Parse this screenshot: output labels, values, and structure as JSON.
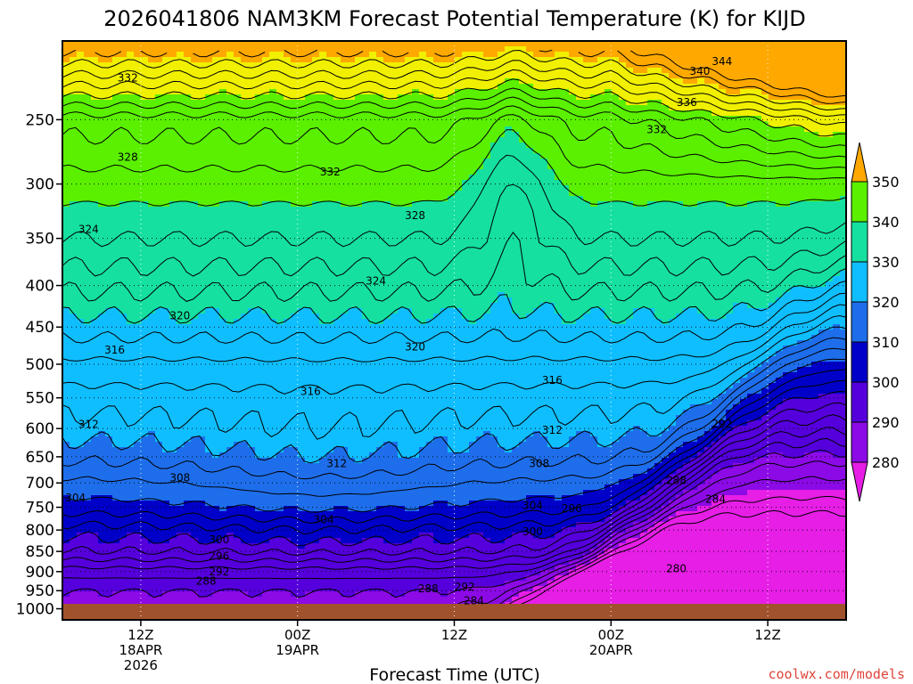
{
  "chart_data": {
    "type": "heatmap",
    "title": "2026041806 NAM3KM Forecast Potential Temperature (K) for KIJD",
    "xlabel": "Forecast Time (UTC)",
    "ylabel": "",
    "credit": "coolwx.com/models",
    "y_axis": {
      "units": "hPa",
      "scale": "log-pressure",
      "range": [
        1000,
        200
      ],
      "ticks": [
        250,
        300,
        350,
        400,
        450,
        500,
        550,
        600,
        650,
        700,
        750,
        800,
        850,
        900,
        950,
        1000
      ]
    },
    "x_axis": {
      "units": "hours from 2026-04-18 06Z",
      "range": [
        0,
        60
      ],
      "ticks": [
        {
          "hour": 6,
          "line1": "12Z",
          "line2": "18APR",
          "line3": "2026"
        },
        {
          "hour": 18,
          "line1": "00Z",
          "line2": "19APR",
          "line3": ""
        },
        {
          "hour": 30,
          "line1": "12Z",
          "line2": "",
          "line3": ""
        },
        {
          "hour": 42,
          "line1": "00Z",
          "line2": "20APR",
          "line3": ""
        },
        {
          "hour": 54,
          "line1": "12Z",
          "line2": "",
          "line3": ""
        }
      ]
    },
    "colorbar": {
      "levels": [
        280,
        290,
        300,
        310,
        320,
        330,
        340,
        350
      ],
      "colors": [
        "#e61ee6",
        "#8c0ae6",
        "#5500dc",
        "#0000c8",
        "#1e6eeb",
        "#0fbeff",
        "#15e0a0",
        "#5af000",
        "#f0f000",
        "#ffa800"
      ]
    },
    "contour_interval": 2,
    "contour_labels": [
      {
        "value": 344,
        "x": 50.5,
        "p": 212
      },
      {
        "value": 340,
        "x": 48.8,
        "p": 218
      },
      {
        "value": 336,
        "x": 47.8,
        "p": 238
      },
      {
        "value": 332,
        "x": 5.0,
        "p": 222
      },
      {
        "value": 332,
        "x": 20.5,
        "p": 290
      },
      {
        "value": 332,
        "x": 45.5,
        "p": 257
      },
      {
        "value": 328,
        "x": 5.0,
        "p": 278
      },
      {
        "value": 328,
        "x": 27.0,
        "p": 328
      },
      {
        "value": 324,
        "x": 2.0,
        "p": 341
      },
      {
        "value": 324,
        "x": 24.0,
        "p": 395
      },
      {
        "value": 320,
        "x": 9.0,
        "p": 436
      },
      {
        "value": 320,
        "x": 27.0,
        "p": 476
      },
      {
        "value": 316,
        "x": 4.0,
        "p": 480
      },
      {
        "value": 316,
        "x": 19.0,
        "p": 540
      },
      {
        "value": 316,
        "x": 37.5,
        "p": 523
      },
      {
        "value": 312,
        "x": 2.0,
        "p": 593
      },
      {
        "value": 312,
        "x": 21.0,
        "p": 663
      },
      {
        "value": 312,
        "x": 37.5,
        "p": 603
      },
      {
        "value": 308,
        "x": 9.0,
        "p": 690
      },
      {
        "value": 308,
        "x": 36.5,
        "p": 663
      },
      {
        "value": 304,
        "x": 1.0,
        "p": 730
      },
      {
        "value": 304,
        "x": 20.0,
        "p": 777
      },
      {
        "value": 304,
        "x": 36.0,
        "p": 746
      },
      {
        "value": 300,
        "x": 12.0,
        "p": 822
      },
      {
        "value": 300,
        "x": 36.0,
        "p": 804
      },
      {
        "value": 296,
        "x": 12.0,
        "p": 862
      },
      {
        "value": 296,
        "x": 39.0,
        "p": 753
      },
      {
        "value": 292,
        "x": 12.0,
        "p": 900
      },
      {
        "value": 292,
        "x": 30.8,
        "p": 940
      },
      {
        "value": 292,
        "x": 50.5,
        "p": 592
      },
      {
        "value": 288,
        "x": 11.0,
        "p": 925
      },
      {
        "value": 288,
        "x": 28.0,
        "p": 945
      },
      {
        "value": 288,
        "x": 47.0,
        "p": 695
      },
      {
        "value": 284,
        "x": 31.5,
        "p": 977
      },
      {
        "value": 284,
        "x": 50.0,
        "p": 733
      },
      {
        "value": 280,
        "x": 47.0,
        "p": 893
      }
    ]
  }
}
